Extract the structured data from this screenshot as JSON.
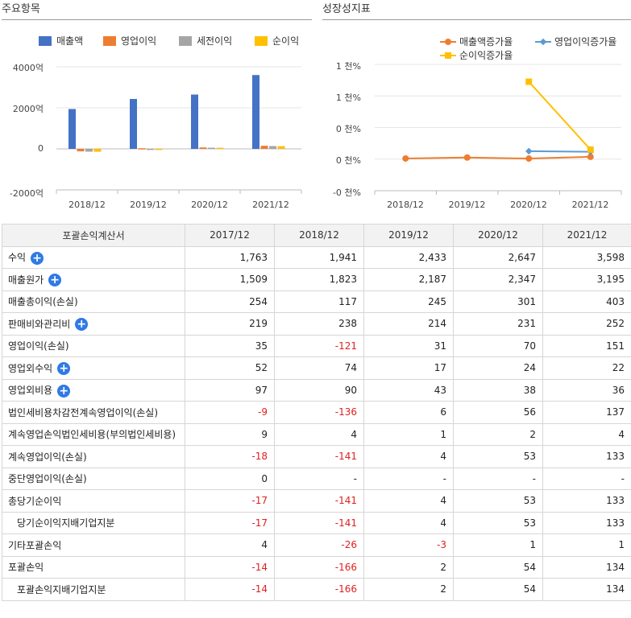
{
  "left_panel": {
    "title": "주요항목"
  },
  "right_panel": {
    "title": "성장성지표"
  },
  "colors": {
    "revenue": "#4472c4",
    "op_income": "#ed7d31",
    "pretax": "#a5a5a5",
    "net": "#ffc000",
    "plus_button": "#2f7ae5",
    "negative": "#e02020"
  },
  "chart_data": [
    {
      "type": "bar",
      "categories": [
        "2018/12",
        "2019/12",
        "2020/12",
        "2021/12"
      ],
      "series": [
        {
          "name": "매출액",
          "values": [
            1941,
            2433,
            2647,
            3598
          ]
        },
        {
          "name": "영업이익",
          "values": [
            -121,
            31,
            70,
            151
          ]
        },
        {
          "name": "세전이익",
          "values": [
            -136,
            6,
            56,
            137
          ]
        },
        {
          "name": "순이익",
          "values": [
            -141,
            4,
            53,
            133
          ]
        }
      ],
      "yticks": [
        "4000억",
        "2000억",
        "0",
        "-2000억"
      ],
      "ylim": [
        -2000,
        4000
      ],
      "legend": "top"
    },
    {
      "type": "line",
      "categories": [
        "2018/12",
        "2019/12",
        "2020/12",
        "2021/12"
      ],
      "series": [
        {
          "name": "매출액증가율",
          "values": [
            10,
            25.3,
            8.8,
            35.9
          ]
        },
        {
          "name": "영업이익증가율",
          "values": [
            null,
            null,
            125.8,
            115.7
          ]
        },
        {
          "name": "순이익증가율",
          "values": [
            null,
            null,
            1225,
            151
          ]
        }
      ],
      "yticks": [
        "1 천%",
        "1 천%",
        "0 천%",
        "0 천%",
        "-0 천%"
      ],
      "ylim": [
        -500,
        1500
      ],
      "legend": "top"
    }
  ],
  "table": {
    "headers": [
      "포괄손익계산서",
      "2017/12",
      "2018/12",
      "2019/12",
      "2020/12",
      "2021/12"
    ],
    "rows": [
      {
        "label": "수익",
        "plus": true,
        "indent": false,
        "values": [
          "1,763",
          "1,941",
          "2,433",
          "2,647",
          "3,598"
        ]
      },
      {
        "label": "매출원가",
        "plus": true,
        "indent": false,
        "values": [
          "1,509",
          "1,823",
          "2,187",
          "2,347",
          "3,195"
        ]
      },
      {
        "label": "매출총이익(손실)",
        "plus": false,
        "indent": false,
        "values": [
          "254",
          "117",
          "245",
          "301",
          "403"
        ]
      },
      {
        "label": "판매비와관리비",
        "plus": true,
        "indent": false,
        "values": [
          "219",
          "238",
          "214",
          "231",
          "252"
        ]
      },
      {
        "label": "영업이익(손실)",
        "plus": false,
        "indent": false,
        "values": [
          "35",
          "-121",
          "31",
          "70",
          "151"
        ]
      },
      {
        "label": "영업외수익",
        "plus": true,
        "indent": false,
        "values": [
          "52",
          "74",
          "17",
          "24",
          "22"
        ]
      },
      {
        "label": "영업외비용",
        "plus": true,
        "indent": false,
        "values": [
          "97",
          "90",
          "43",
          "38",
          "36"
        ]
      },
      {
        "label": "법인세비용차감전계속영업이익(손실)",
        "plus": false,
        "indent": false,
        "values": [
          "-9",
          "-136",
          "6",
          "56",
          "137"
        ]
      },
      {
        "label": "계속영업손익법인세비용(부의법인세비용)",
        "plus": false,
        "indent": false,
        "values": [
          "9",
          "4",
          "1",
          "2",
          "4"
        ]
      },
      {
        "label": "계속영업이익(손실)",
        "plus": false,
        "indent": false,
        "values": [
          "-18",
          "-141",
          "4",
          "53",
          "133"
        ]
      },
      {
        "label": "중단영업이익(손실)",
        "plus": false,
        "indent": false,
        "values": [
          "0",
          "-",
          "-",
          "-",
          "-"
        ]
      },
      {
        "label": "총당기순이익",
        "plus": false,
        "indent": false,
        "values": [
          "-17",
          "-141",
          "4",
          "53",
          "133"
        ]
      },
      {
        "label": "당기순이익지배기업지분",
        "plus": false,
        "indent": true,
        "values": [
          "-17",
          "-141",
          "4",
          "53",
          "133"
        ]
      },
      {
        "label": "기타포괄손익",
        "plus": false,
        "indent": false,
        "values": [
          "4",
          "-26",
          "-3",
          "1",
          "1"
        ]
      },
      {
        "label": "포괄손익",
        "plus": false,
        "indent": false,
        "values": [
          "-14",
          "-166",
          "2",
          "54",
          "134"
        ]
      },
      {
        "label": "포괄손익지배기업지분",
        "plus": false,
        "indent": true,
        "values": [
          "-14",
          "-166",
          "2",
          "54",
          "134"
        ]
      }
    ]
  }
}
